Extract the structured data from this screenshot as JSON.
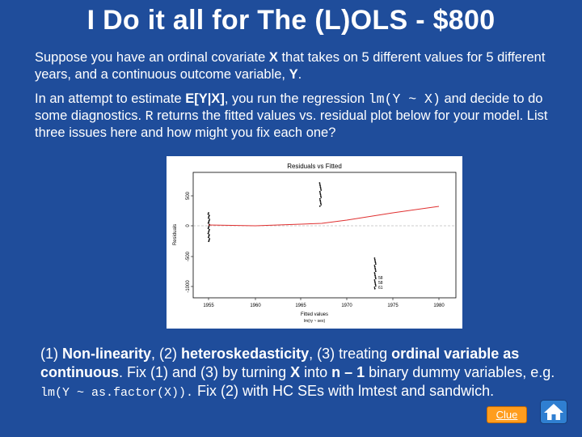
{
  "slide": {
    "title": "I Do it all for The (L)OLS - $800"
  },
  "question": {
    "p1": {
      "t1": "Suppose you have an ordinal covariate ",
      "b1": "X",
      "t2": " that takes on 5 different values for 5 different years, and a continuous outcome variable, ",
      "b2": "Y",
      "t3": "."
    },
    "p2": {
      "t1": "In an attempt to estimate ",
      "b1": "E[Y|X]",
      "t2": ", you run the regression ",
      "code1": "lm(Y ~ X)",
      "t3": " and decide to do some diagnostics. ",
      "code2": "R",
      "t4": " returns the fitted values vs. residual plot below for your model. List  three issues here and how might you fix each one?"
    }
  },
  "plot": {
    "title": "Residuals vs Fitted",
    "xlabel": "Fitted values",
    "xsublabel": "lm(ry ~ sex)",
    "ylabel": "Residuals",
    "yticks": [
      "500",
      "0",
      "-500",
      "-1000"
    ],
    "xticks": [
      "1955",
      "1960",
      "1965",
      "1970",
      "1975",
      "1980"
    ],
    "outlier_labels": [
      "58",
      "58",
      "61"
    ]
  },
  "answer": {
    "t1": "(1) ",
    "b1": "Non-linearity",
    "t2": ", (2) ",
    "b2": "heteroskedasticity",
    "t3": ", (3) treating ",
    "b3": "ordinal variable as continuous",
    "t4": ". Fix (1) and (3) by turning ",
    "b4": "X",
    "t5": " into ",
    "b5": "n – 1",
    "t6": " binary dummy variables, e.g. ",
    "code1": "lm(Y ~ as.factor(X)).",
    "t7": " Fix (2) with HC SEs with lmtest and sandwich."
  },
  "buttons": {
    "clue": "Clue",
    "home_icon": "home-icon"
  },
  "colors": {
    "background": "#1f4d9b",
    "clue_button": "#ff9d1e",
    "lowess_line": "#e03030"
  }
}
